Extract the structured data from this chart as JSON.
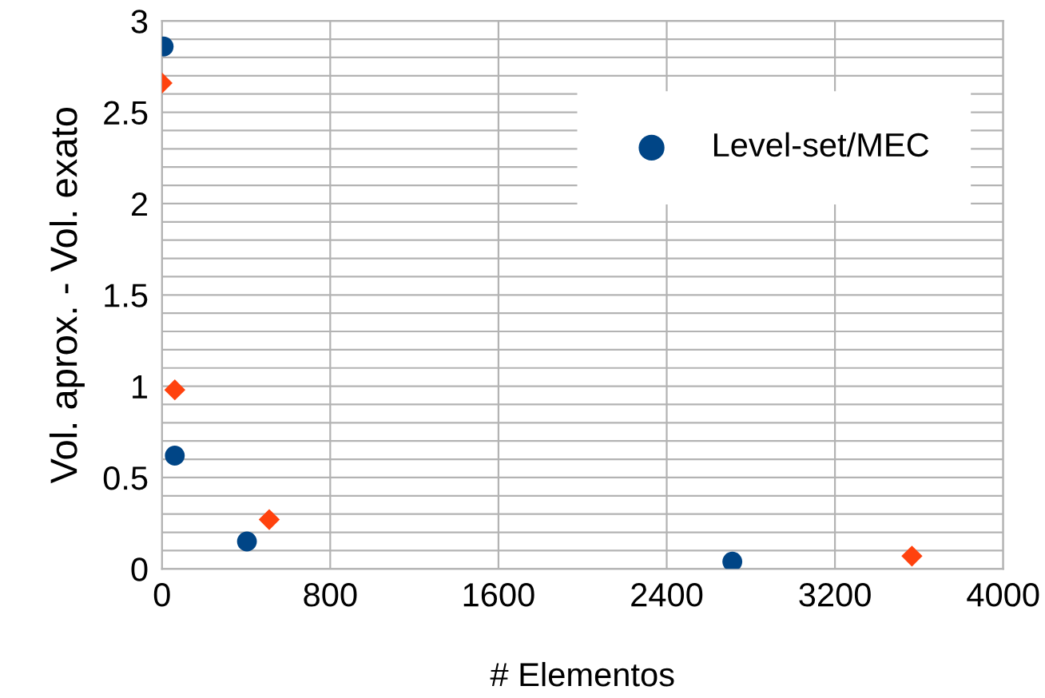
{
  "chart_data": {
    "type": "scatter",
    "xlabel": "# Elementos",
    "ylabel": "Vol. aprox. - Vol. exato",
    "series": [
      {
        "name": "Level-set/MEC",
        "color": "#004586",
        "marker": "circle",
        "x": [
          8,
          61,
          404,
          2712
        ],
        "values": [
          2.86,
          0.62,
          0.15,
          0.04
        ]
      },
      {
        "color": "#ff420e",
        "marker": "diamond",
        "x": [
          0,
          61,
          510,
          3566
        ],
        "values": [
          2.66,
          0.98,
          0.27,
          0.07
        ]
      }
    ],
    "xlim": [
      0,
      4000
    ],
    "xticks": [
      0,
      800,
      1600,
      2400,
      3200,
      4000
    ],
    "ylim": [
      0,
      3
    ],
    "yticks": [
      0,
      {
        "value": 0.1,
        "label": null
      },
      {
        "value": 0.2,
        "label": null
      },
      {
        "value": 0.3,
        "label": null
      },
      {
        "value": 0.4,
        "label": null
      },
      0.5,
      {
        "value": 0.6,
        "label": null
      },
      {
        "value": 0.7,
        "label": null
      },
      {
        "value": 0.8,
        "label": null
      },
      {
        "value": 0.9,
        "label": null
      },
      1,
      {
        "value": 1.1,
        "label": null
      },
      {
        "value": 1.2,
        "label": null
      },
      {
        "value": 1.3,
        "label": null
      },
      {
        "value": 1.4,
        "label": null
      },
      1.5,
      {
        "value": 1.6,
        "label": null
      },
      {
        "value": 1.7,
        "label": null
      },
      {
        "value": 1.8,
        "label": null
      },
      {
        "value": 1.9,
        "label": null
      },
      2,
      {
        "value": 2.1,
        "label": null
      },
      {
        "value": 2.2,
        "label": null
      },
      {
        "value": 2.3,
        "label": null
      },
      {
        "value": 2.4,
        "label": null
      },
      2.5,
      {
        "value": 2.6,
        "label": null
      },
      {
        "value": 2.7,
        "label": null
      },
      {
        "value": 2.8,
        "label": null
      },
      {
        "value": 2.9,
        "label": null
      },
      3
    ],
    "grid": true,
    "legend": "top right"
  }
}
